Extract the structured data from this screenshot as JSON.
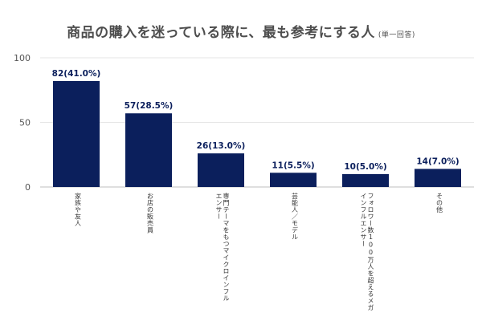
{
  "chart_data": {
    "type": "bar",
    "title": "商品の購入を迷っている際に、最も参考にする人",
    "title_note": "(単一回答)",
    "ylim": [
      0,
      100
    ],
    "yticks": [
      0,
      50,
      100
    ],
    "grid": true,
    "bar_color": "#0b1f5c",
    "categories": [
      [
        "家族や友人"
      ],
      [
        "お店の販売員"
      ],
      [
        "専門テーマをもつマイクロインフル",
        "エンサー"
      ],
      [
        "芸能人／モデル"
      ],
      [
        "フォロワー数100万人を超えるメガ",
        "インフルエンサー"
      ],
      [
        "その他"
      ]
    ],
    "values": [
      82,
      57,
      26,
      11,
      10,
      14
    ],
    "data_labels": [
      "82(41.0%)",
      "57(28.5%)",
      "26(13.0%)",
      "11(5.5%)",
      "10(5.0%)",
      "14(7.0%)"
    ]
  }
}
